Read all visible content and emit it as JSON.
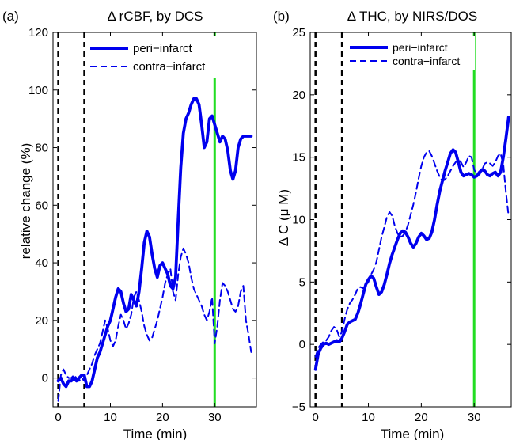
{
  "chart_data": [
    {
      "type": "line",
      "panel_label": "(a)",
      "title": "Δ rCBF, by DCS",
      "xlabel": "Time (min)",
      "ylabel": "relative change (%)",
      "xlim": [
        -1,
        38
      ],
      "ylim": [
        -10,
        120
      ],
      "xticks": [
        0,
        10,
        20,
        30
      ],
      "yticks": [
        0,
        20,
        40,
        60,
        80,
        100,
        120
      ],
      "grid": false,
      "legend_position": "top-right",
      "vlines": [
        {
          "x": 0,
          "style": "dashed",
          "color": "#000000"
        },
        {
          "x": 5,
          "style": "dashed",
          "color": "#000000"
        },
        {
          "x": 30,
          "style": "solid",
          "color": "#22dd22"
        }
      ],
      "series": [
        {
          "name": "peri−infarct",
          "color": "#0000ee",
          "style": "solid",
          "x": [
            0,
            0.5,
            1,
            1.5,
            2,
            2.5,
            3,
            3.5,
            4,
            4.5,
            5,
            5.5,
            6,
            6.5,
            7,
            7.5,
            8,
            8.5,
            9,
            9.5,
            10,
            10.5,
            11,
            11.5,
            12,
            12.5,
            13,
            13.5,
            14,
            14.5,
            15,
            15.5,
            16,
            16.5,
            17,
            17.5,
            18,
            18.5,
            19,
            19.5,
            20,
            20.5,
            21,
            21.5,
            22,
            22.5,
            23,
            23.5,
            24,
            24.5,
            25,
            25.5,
            26,
            26.5,
            27,
            27.5,
            28,
            28.5,
            29,
            29.5,
            30,
            30.5,
            31,
            31.5,
            32,
            32.5,
            33,
            33.5,
            34,
            34.5,
            35,
            35.5,
            36,
            36.5,
            37
          ],
          "y": [
            -1,
            0,
            -2,
            -3,
            -1,
            -1,
            0,
            -1,
            0,
            1,
            1,
            -3,
            -3,
            -1,
            3,
            7,
            9,
            12,
            15,
            18,
            20,
            24,
            28,
            31,
            30,
            26,
            23,
            24,
            29,
            27,
            25,
            30,
            38,
            47,
            51,
            49,
            43,
            38,
            35,
            39,
            40,
            38,
            36,
            32,
            31,
            35,
            55,
            73,
            85,
            90,
            92,
            95,
            97,
            97,
            95,
            88,
            80,
            82,
            90,
            91,
            88,
            85,
            82,
            84,
            83,
            79,
            72,
            69,
            72,
            80,
            83,
            84,
            84,
            84,
            84
          ]
        },
        {
          "name": "contra−infarct",
          "color": "#0000ee",
          "style": "dashed",
          "x": [
            0,
            0.5,
            1,
            1.5,
            2,
            2.5,
            3,
            3.5,
            4,
            4.5,
            5,
            5.5,
            6,
            6.5,
            7,
            7.5,
            8,
            8.5,
            9,
            9.5,
            10,
            10.5,
            11,
            11.5,
            12,
            12.5,
            13,
            13.5,
            14,
            14.5,
            15,
            15.5,
            16,
            16.5,
            17,
            17.5,
            18,
            18.5,
            19,
            19.5,
            20,
            20.5,
            21,
            21.5,
            22,
            22.5,
            23,
            23.5,
            24,
            24.5,
            25,
            25.5,
            26,
            26.5,
            27,
            27.5,
            28,
            28.5,
            29,
            29.5,
            30,
            30.5,
            31,
            31.5,
            32,
            32.5,
            33,
            33.5,
            34,
            34.5,
            35,
            35.5,
            36,
            36.5,
            37
          ],
          "y": [
            -8,
            1,
            3,
            1,
            0,
            0,
            1,
            0,
            -1,
            0,
            -1,
            1,
            3,
            5,
            8,
            10,
            12,
            16,
            20,
            17,
            13,
            11,
            13,
            18,
            22,
            20,
            17,
            19,
            22,
            28,
            30,
            27,
            23,
            18,
            15,
            13,
            14,
            17,
            20,
            24,
            28,
            33,
            36,
            38,
            30,
            27,
            36,
            42,
            45,
            43,
            40,
            35,
            31,
            29,
            27,
            25,
            22,
            20,
            23,
            28,
            12,
            18,
            27,
            33,
            32,
            30,
            27,
            24,
            23,
            25,
            30,
            32,
            20,
            15,
            9
          ]
        }
      ]
    },
    {
      "type": "line",
      "panel_label": "(b)",
      "title": "Δ THC, by NIRS/DOS",
      "xlabel": "Time (min)",
      "ylabel": "Δ C (μ M)",
      "xlim": [
        -1,
        37
      ],
      "ylim": [
        -5,
        25
      ],
      "xticks": [
        0,
        10,
        20,
        30
      ],
      "yticks": [
        -5,
        0,
        5,
        10,
        15,
        20,
        25
      ],
      "grid": false,
      "legend_position": "top-right",
      "vlines": [
        {
          "x": 0,
          "style": "dashed",
          "color": "#000000"
        },
        {
          "x": 5,
          "style": "dashed",
          "color": "#000000"
        },
        {
          "x": 30,
          "style": "solid",
          "color": "#22dd22"
        }
      ],
      "series": [
        {
          "name": "peri−infarct",
          "color": "#0000ee",
          "style": "solid",
          "x": [
            0,
            0.5,
            1,
            1.5,
            2,
            2.5,
            3,
            3.5,
            4,
            4.5,
            5,
            5.5,
            6,
            6.5,
            7,
            7.5,
            8,
            8.5,
            9,
            9.5,
            10,
            10.5,
            11,
            11.5,
            12,
            12.5,
            13,
            13.5,
            14,
            14.5,
            15,
            15.5,
            16,
            16.5,
            17,
            17.5,
            18,
            18.5,
            19,
            19.5,
            20,
            20.5,
            21,
            21.5,
            22,
            22.5,
            23,
            23.5,
            24,
            24.5,
            25,
            25.5,
            26,
            26.5,
            27,
            27.5,
            28,
            28.5,
            29,
            29.5,
            30,
            30.5,
            31,
            31.5,
            32,
            32.5,
            33,
            33.5,
            34,
            34.5,
            35,
            35.5,
            36,
            36.5
          ],
          "y": [
            -2,
            -0.8,
            -0.3,
            0,
            0.1,
            0,
            0.1,
            0.2,
            0.3,
            0.2,
            0.5,
            1.0,
            1.6,
            1.8,
            1.9,
            2.0,
            2.5,
            3.2,
            4.0,
            4.8,
            5.2,
            5.5,
            5.3,
            4.6,
            4.0,
            4.2,
            4.8,
            5.6,
            6.5,
            7.2,
            7.8,
            8.4,
            8.9,
            9.1,
            9.0,
            8.6,
            8.1,
            7.8,
            8.1,
            8.6,
            8.9,
            8.7,
            8.4,
            8.5,
            9.0,
            10.0,
            11.2,
            12.3,
            13.1,
            13.9,
            14.6,
            15.3,
            15.6,
            15.4,
            14.6,
            13.8,
            13.5,
            13.6,
            13.7,
            13.6,
            13.4,
            13.5,
            13.8,
            14.0,
            13.9,
            13.6,
            13.5,
            13.7,
            13.8,
            13.5,
            13.8,
            15.0,
            16.5,
            18.2
          ]
        },
        {
          "name": "contra−infarct",
          "color": "#0000ee",
          "style": "dashed",
          "x": [
            0,
            0.5,
            1,
            1.5,
            2,
            2.5,
            3,
            3.5,
            4,
            4.5,
            5,
            5.5,
            6,
            6.5,
            7,
            7.5,
            8,
            8.5,
            9,
            9.5,
            10,
            10.5,
            11,
            11.5,
            12,
            12.5,
            13,
            13.5,
            14,
            14.5,
            15,
            15.5,
            16,
            16.5,
            17,
            17.5,
            18,
            18.5,
            19,
            19.5,
            20,
            20.5,
            21,
            21.5,
            22,
            22.5,
            23,
            23.5,
            24,
            24.5,
            25,
            25.5,
            26,
            26.5,
            27,
            27.5,
            28,
            28.5,
            29,
            29.5,
            30,
            30.5,
            31,
            31.5,
            32,
            32.5,
            33,
            33.5,
            34,
            34.5,
            35,
            35.5,
            36,
            36.5
          ],
          "y": [
            -1,
            -0.3,
            0,
            0.2,
            0.3,
            0.6,
            1.1,
            1.4,
            1.2,
            0.6,
            1.0,
            2.0,
            2.8,
            3.3,
            3.6,
            4.0,
            4.5,
            4.6,
            4.5,
            4.7,
            5.0,
            5.6,
            6.0,
            6.6,
            7.6,
            8.6,
            9.4,
            10.2,
            10.6,
            10.3,
            9.5,
            8.9,
            8.6,
            8.7,
            9.0,
            9.6,
            10.4,
            11.2,
            12.2,
            13.3,
            14.3,
            15.0,
            15.4,
            15.5,
            15.1,
            14.5,
            13.9,
            13.4,
            13.1,
            13.2,
            13.5,
            13.9,
            14.3,
            14.6,
            14.8,
            14.6,
            14.2,
            14.6,
            15.1,
            15.0,
            14.0,
            13.6,
            13.6,
            14.0,
            14.5,
            14.6,
            14.5,
            14.3,
            14.6,
            15.1,
            15.3,
            14.4,
            12.2,
            10.3
          ]
        }
      ]
    }
  ]
}
